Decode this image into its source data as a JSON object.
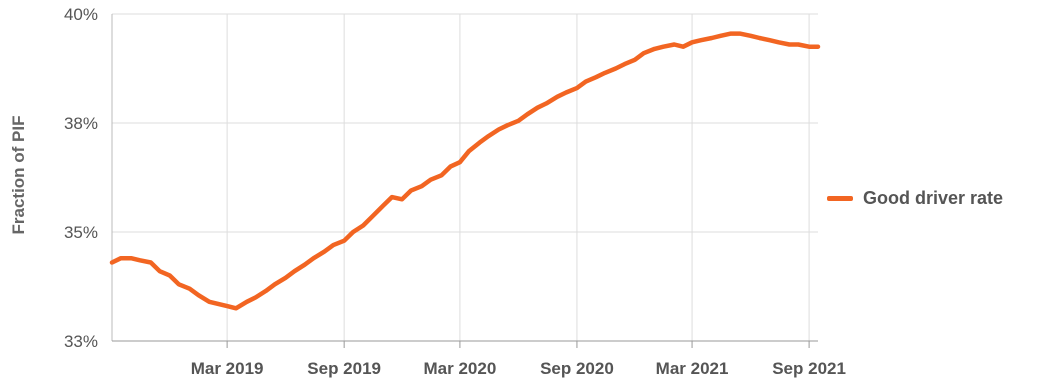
{
  "chart_data": {
    "type": "line",
    "ylabel": "Fraction of PIF",
    "ylim": [
      33,
      40
    ],
    "y_ticks": [
      "40%",
      "38%",
      "35%",
      "33%"
    ],
    "y_tick_values": [
      40,
      37.5,
      35,
      32.5
    ],
    "x_ticks": [
      "Mar 2019",
      "Sep 2019",
      "Mar 2020",
      "Sep 2020",
      "Mar 2021",
      "Sep 2021"
    ],
    "x_tick_dates": [
      "2019-03-01",
      "2019-09-01",
      "2020-03-01",
      "2020-09-01",
      "2021-03-01",
      "2021-09-01"
    ],
    "x_range": [
      "2018-09-01",
      "2021-09-15"
    ],
    "grid": true,
    "legend_position": "right",
    "series": [
      {
        "name": "Good driver rate",
        "color": "#f26522",
        "x": [
          "2018-09-01",
          "2018-09-15",
          "2018-10-01",
          "2018-10-15",
          "2018-11-01",
          "2018-11-15",
          "2018-12-01",
          "2018-12-15",
          "2019-01-01",
          "2019-01-15",
          "2019-02-01",
          "2019-02-15",
          "2019-03-01",
          "2019-03-15",
          "2019-04-01",
          "2019-04-15",
          "2019-05-01",
          "2019-05-15",
          "2019-06-01",
          "2019-06-15",
          "2019-07-01",
          "2019-07-15",
          "2019-08-01",
          "2019-08-15",
          "2019-09-01",
          "2019-09-15",
          "2019-10-01",
          "2019-10-15",
          "2019-11-01",
          "2019-11-15",
          "2019-12-01",
          "2019-12-15",
          "2020-01-01",
          "2020-01-15",
          "2020-02-01",
          "2020-02-15",
          "2020-03-01",
          "2020-03-15",
          "2020-04-01",
          "2020-04-15",
          "2020-05-01",
          "2020-05-15",
          "2020-06-01",
          "2020-06-15",
          "2020-07-01",
          "2020-07-15",
          "2020-08-01",
          "2020-08-15",
          "2020-09-01",
          "2020-09-15",
          "2020-10-01",
          "2020-10-15",
          "2020-11-01",
          "2020-11-15",
          "2020-12-01",
          "2020-12-15",
          "2021-01-01",
          "2021-01-15",
          "2021-02-01",
          "2021-02-15",
          "2021-03-01",
          "2021-03-15",
          "2021-04-01",
          "2021-04-15",
          "2021-05-01",
          "2021-05-15",
          "2021-06-01",
          "2021-06-15",
          "2021-07-01",
          "2021-07-15",
          "2021-08-01",
          "2021-08-15",
          "2021-09-01",
          "2021-09-15"
        ],
        "values": [
          34.3,
          34.4,
          34.4,
          34.35,
          34.3,
          34.1,
          34.0,
          33.8,
          33.7,
          33.55,
          33.4,
          33.35,
          33.3,
          33.25,
          33.4,
          33.5,
          33.65,
          33.8,
          33.95,
          34.1,
          34.25,
          34.4,
          34.55,
          34.7,
          34.8,
          35.0,
          35.15,
          35.35,
          35.6,
          35.8,
          35.75,
          35.95,
          36.05,
          36.2,
          36.3,
          36.5,
          36.6,
          36.85,
          37.05,
          37.2,
          37.35,
          37.45,
          37.55,
          37.7,
          37.85,
          37.95,
          38.1,
          38.2,
          38.3,
          38.45,
          38.55,
          38.65,
          38.75,
          38.85,
          38.95,
          39.1,
          39.2,
          39.25,
          39.3,
          39.25,
          39.35,
          39.4,
          39.45,
          39.5,
          39.55,
          39.55,
          39.5,
          39.45,
          39.4,
          39.35,
          39.3,
          39.3,
          39.25,
          39.25
        ]
      }
    ]
  }
}
